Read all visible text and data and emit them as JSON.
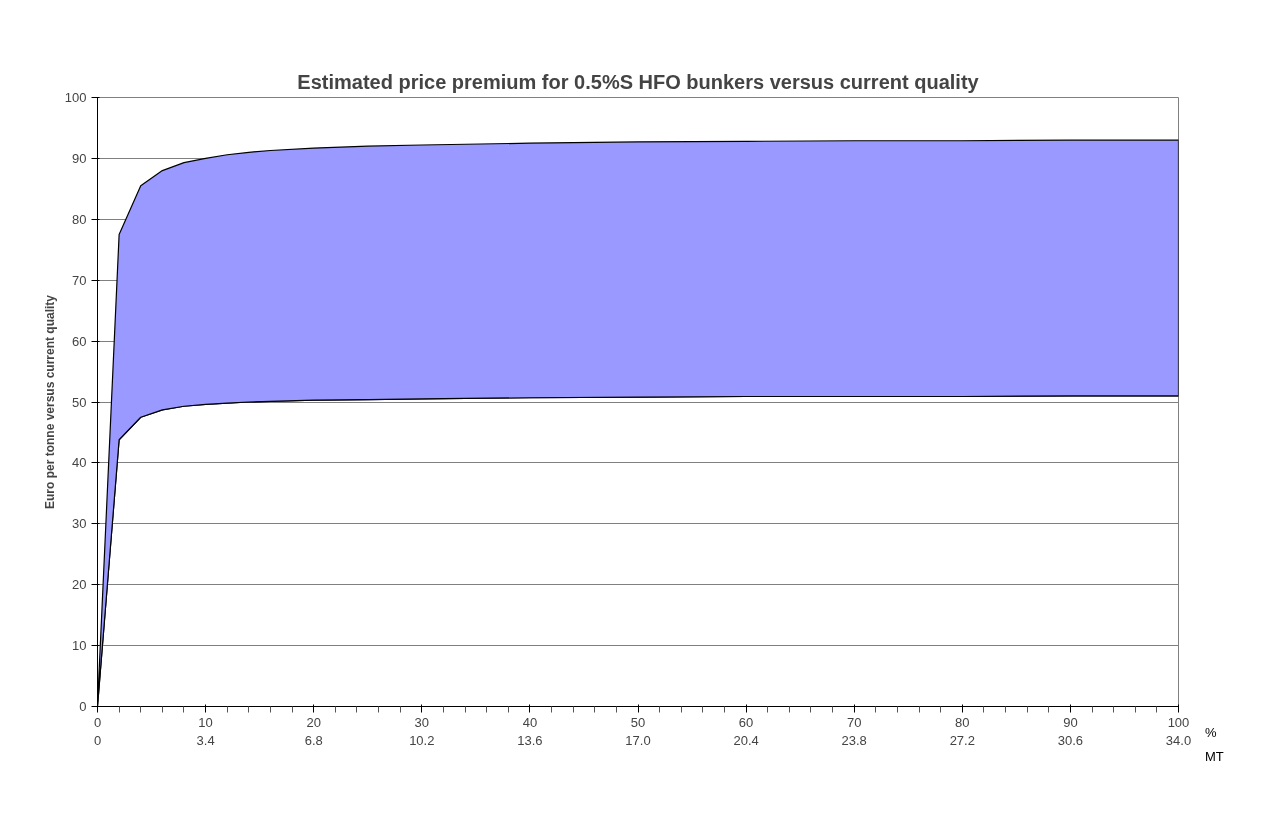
{
  "chart_data": {
    "type": "area",
    "title": "Estimated price premium for 0.5%S HFO bunkers versus current quality",
    "ylabel": "Euro per tonne versus current quality",
    "xlabel": "%",
    "x2label": "MT",
    "x": [
      0,
      2,
      4,
      6,
      8,
      10,
      12,
      14,
      16,
      20,
      25,
      30,
      40,
      50,
      60,
      70,
      80,
      90,
      100
    ],
    "series": [
      {
        "type": "line",
        "color": "#000000",
        "values": [
          0,
          43.8,
          47.5,
          48.7,
          49.3,
          49.6,
          49.8,
          50,
          50.1,
          50.3,
          50.4,
          50.5,
          50.7,
          50.8,
          50.9,
          50.9,
          50.9,
          51,
          51
        ]
      },
      {
        "color": "#9999ff",
        "values": [
          0,
          77.5,
          85.5,
          88,
          89.3,
          90,
          90.6,
          91,
          91.3,
          91.7,
          92,
          92.2,
          92.5,
          92.7,
          92.8,
          92.9,
          92.9,
          93,
          93
        ]
      }
    ],
    "xlim": [
      0,
      100
    ],
    "xticks": [
      0,
      10,
      20,
      30,
      40,
      50,
      60,
      70,
      80,
      90,
      100
    ],
    "x2lim": [
      0,
      34
    ],
    "x2ticks": [
      0,
      {
        "value": 3.4,
        "label": "3.4"
      },
      {
        "value": 6.8,
        "label": "6.8"
      },
      {
        "value": 10.2,
        "label": "10.2"
      },
      {
        "value": 13.6,
        "label": "13.6"
      },
      {
        "value": 17,
        "label": "17.0"
      },
      {
        "value": 20.4,
        "label": "20.4"
      },
      {
        "value": 23.8,
        "label": "23.8"
      },
      {
        "value": 27.2,
        "label": "27.2"
      },
      {
        "value": 30.6,
        "label": "30.6"
      },
      {
        "value": 34,
        "label": "34.0"
      }
    ],
    "ylim": [
      0,
      100
    ],
    "yticks": [
      0,
      10,
      20,
      30,
      40,
      50,
      60,
      70,
      80,
      90,
      100
    ],
    "grid": "y"
  }
}
